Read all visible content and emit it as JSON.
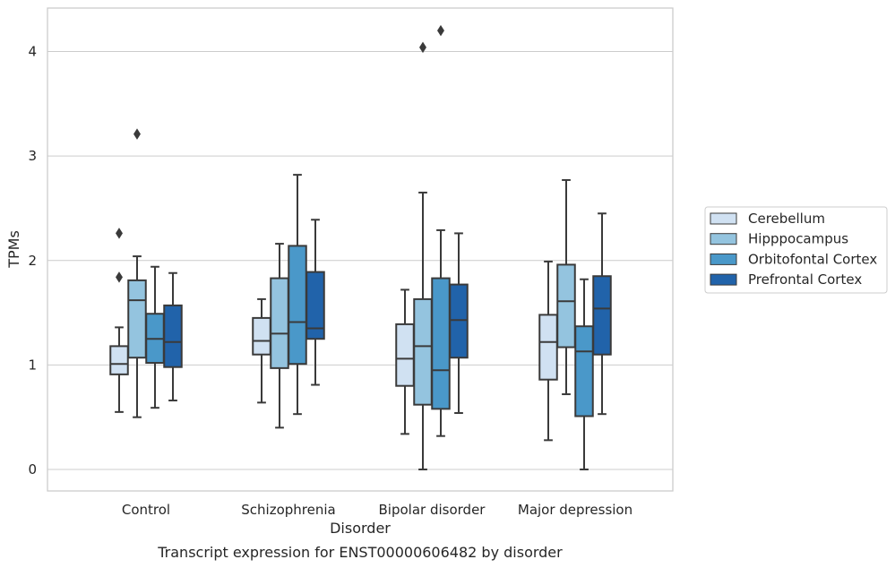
{
  "caption": "Transcript expression for ENST00000606482 by disorder",
  "chart_data": {
    "type": "box",
    "xlabel": "Disorder",
    "ylabel": "TPMs",
    "ylim": [
      -0.2,
      4.4
    ],
    "yticks": [
      0,
      1,
      2,
      3,
      4
    ],
    "grid": "horizontal",
    "legend_position": "right",
    "categories": [
      "Control",
      "Schizophrenia",
      "Bipolar disorder",
      "Major depression"
    ],
    "series": [
      {
        "name": "Cerebellum",
        "color": "#d0e1f2",
        "boxes": [
          {
            "whisker_low": 0.55,
            "q1": 0.91,
            "median": 1.01,
            "q3": 1.18,
            "whisker_high": 1.36,
            "outliers": [
              1.84,
              2.26
            ]
          },
          {
            "whisker_low": 0.64,
            "q1": 1.1,
            "median": 1.23,
            "q3": 1.45,
            "whisker_high": 1.63,
            "outliers": []
          },
          {
            "whisker_low": 0.34,
            "q1": 0.8,
            "median": 1.06,
            "q3": 1.39,
            "whisker_high": 1.72,
            "outliers": []
          },
          {
            "whisker_low": 0.28,
            "q1": 0.86,
            "median": 1.22,
            "q3": 1.48,
            "whisker_high": 1.99,
            "outliers": []
          }
        ]
      },
      {
        "name": "Hipppocampus",
        "color": "#94c4df",
        "boxes": [
          {
            "whisker_low": 0.5,
            "q1": 1.07,
            "median": 1.62,
            "q3": 1.81,
            "whisker_high": 2.04,
            "outliers": [
              3.21
            ]
          },
          {
            "whisker_low": 0.4,
            "q1": 0.97,
            "median": 1.3,
            "q3": 1.83,
            "whisker_high": 2.16,
            "outliers": []
          },
          {
            "whisker_low": 0.0,
            "q1": 0.62,
            "median": 1.18,
            "q3": 1.63,
            "whisker_high": 2.65,
            "outliers": [
              4.04
            ]
          },
          {
            "whisker_low": 0.72,
            "q1": 1.17,
            "median": 1.61,
            "q3": 1.96,
            "whisker_high": 2.77,
            "outliers": []
          }
        ]
      },
      {
        "name": "Orbitofontal Cortex",
        "color": "#4a98c9",
        "boxes": [
          {
            "whisker_low": 0.59,
            "q1": 1.02,
            "median": 1.25,
            "q3": 1.49,
            "whisker_high": 1.94,
            "outliers": []
          },
          {
            "whisker_low": 0.53,
            "q1": 1.01,
            "median": 1.41,
            "q3": 2.14,
            "whisker_high": 2.82,
            "outliers": []
          },
          {
            "whisker_low": 0.32,
            "q1": 0.58,
            "median": 0.95,
            "q3": 1.83,
            "whisker_high": 2.29,
            "outliers": [
              4.2
            ]
          },
          {
            "whisker_low": 0.0,
            "q1": 0.51,
            "median": 1.13,
            "q3": 1.37,
            "whisker_high": 1.82,
            "outliers": []
          }
        ]
      },
      {
        "name": "Prefrontal Cortex",
        "color": "#2163aa",
        "boxes": [
          {
            "whisker_low": 0.66,
            "q1": 0.98,
            "median": 1.22,
            "q3": 1.57,
            "whisker_high": 1.88,
            "outliers": []
          },
          {
            "whisker_low": 0.81,
            "q1": 1.25,
            "median": 1.35,
            "q3": 1.89,
            "whisker_high": 2.39,
            "outliers": []
          },
          {
            "whisker_low": 0.54,
            "q1": 1.07,
            "median": 1.43,
            "q3": 1.77,
            "whisker_high": 2.26,
            "outliers": []
          },
          {
            "whisker_low": 0.53,
            "q1": 1.1,
            "median": 1.54,
            "q3": 1.85,
            "whisker_high": 2.45,
            "outliers": []
          }
        ]
      }
    ]
  }
}
